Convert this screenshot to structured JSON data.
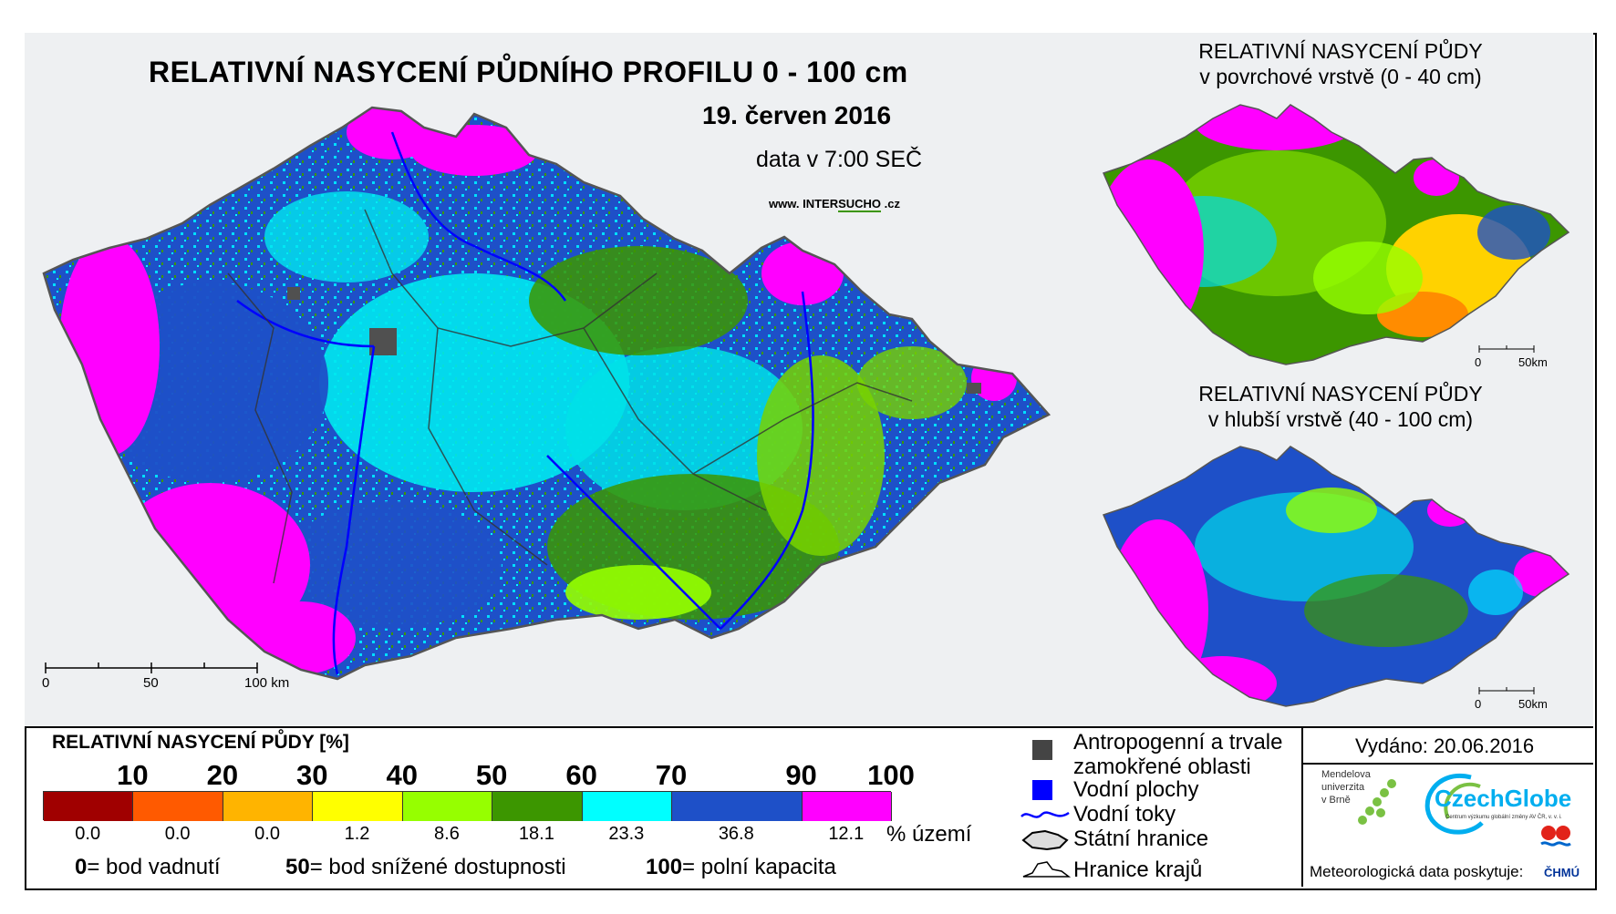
{
  "main_map": {
    "title": "RELATIVNÍ NASYCENÍ PŮDNÍHO PROFILU 0 - 100 cm",
    "date": "19. červen 2016",
    "time": "data v 7:00 SEČ",
    "website_prefix": "www. INTER",
    "website_highlight": "SUCHO",
    "website_suffix": " .cz",
    "scale": {
      "s0": "0",
      "s1": "50",
      "s2": "100 km"
    }
  },
  "inset_surface": {
    "title_line1": "RELATIVNÍ NASYCENÍ PŮDY",
    "title_line2": "v povrchové vrstvě (0 - 40 cm)",
    "scale": {
      "s0": "0",
      "s1": "50km"
    }
  },
  "inset_deep": {
    "title_line1": "RELATIVNÍ NASYCENÍ PŮDY",
    "title_line2": "v hlubší vrstvě (40 - 100 cm)",
    "scale": {
      "s0": "0",
      "s1": "50km"
    }
  },
  "legend": {
    "title": "RELATIVNÍ NASYCENÍ PŮDY [%]",
    "thresholds": [
      "10",
      "20",
      "30",
      "40",
      "50",
      "60",
      "70",
      "90",
      "100"
    ],
    "classes": [
      {
        "color": "#a00000",
        "percent": "0.0"
      },
      {
        "color": "#ff5a00",
        "percent": "0.0"
      },
      {
        "color": "#ffb400",
        "percent": "0.0"
      },
      {
        "color": "#ffff00",
        "percent": "1.2"
      },
      {
        "color": "#96ff00",
        "percent": "8.6"
      },
      {
        "color": "#3c9600",
        "percent": "18.1"
      },
      {
        "color": "#00ffff",
        "percent": "23.3"
      },
      {
        "color": "#1e50c8",
        "percent": "36.8"
      },
      {
        "color": "#ff00ff",
        "percent": "12.1"
      }
    ],
    "percent_unit": "% území",
    "definitions": [
      {
        "num": "0",
        "text": "= bod vadnutí"
      },
      {
        "num": "50",
        "text": "= bod snížené dostupnosti"
      },
      {
        "num": "100",
        "text": "= polní kapacita"
      }
    ]
  },
  "symbols": [
    {
      "icon": "dark-square-icon",
      "label": "Antropogenní a trvale zamokřené oblasti"
    },
    {
      "icon": "blue-square-icon",
      "label": "Vodní plochy"
    },
    {
      "icon": "river-line-icon",
      "label": "Vodní toky"
    },
    {
      "icon": "state-border-icon",
      "label": "Státní hranice"
    },
    {
      "icon": "region-border-icon",
      "label": "Hranice krajů"
    }
  ],
  "issued": "Vydáno: 20.06.2016",
  "logos": {
    "mendel_l1": "Mendelova",
    "mendel_l2": "univerzita",
    "mendel_l3": "v Brně",
    "czechglobe": "CzechGlobe",
    "czechglobe_sub": "Centrum výzkumu globální změny AV ČR, v. v. i.",
    "chmu": "ČHMÚ"
  },
  "credit": "Meteorologická data poskytuje:",
  "colors": {
    "magenta": "#ff00ff",
    "blue": "#1e50c8",
    "cyan": "#00ffff",
    "dark_green": "#3c9600",
    "light_green": "#96ff00",
    "yellow": "#ffff00",
    "orange": "#ffb400",
    "red_orange": "#ff5a00",
    "river": "#0000ff"
  }
}
